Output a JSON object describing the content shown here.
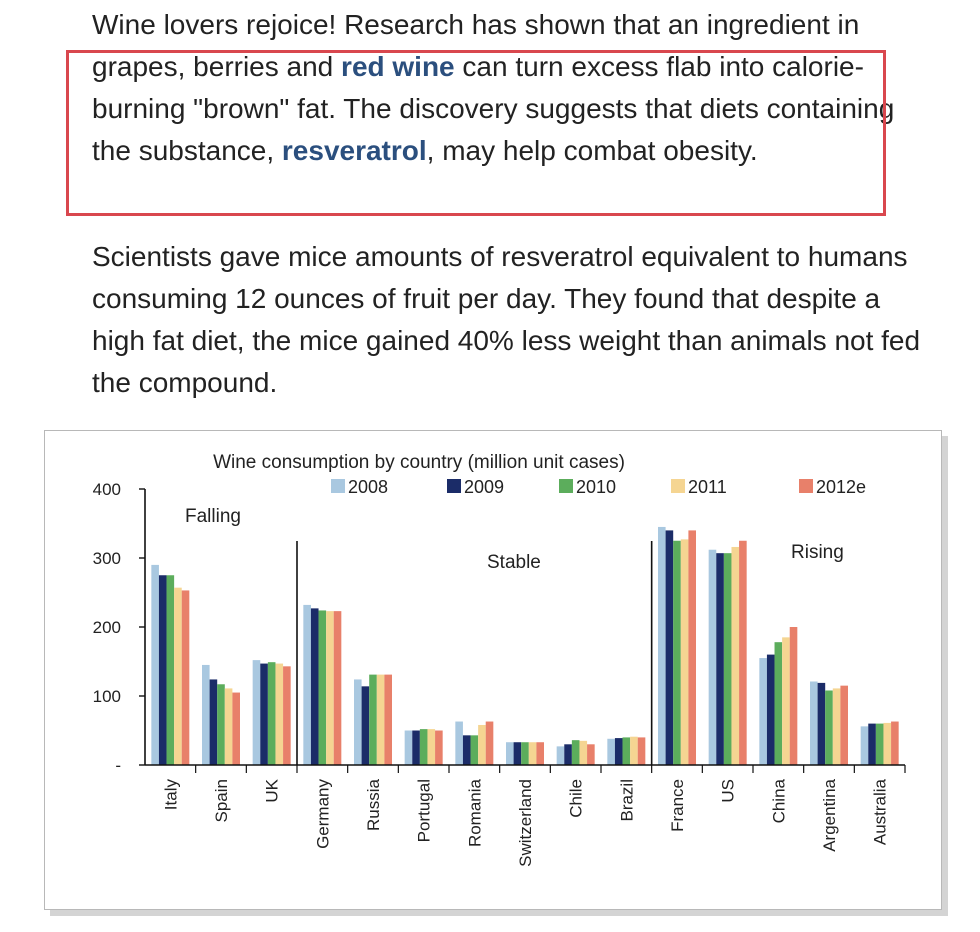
{
  "article": {
    "para1": {
      "t1": "Wine lovers rejoice! Research has shown that an ingredient in grapes, berries and ",
      "h1": "red wine",
      "t2": " can turn excess flab into calorie-burning \"brown\" fat. The discovery suggests that diets containing the substance, ",
      "h2": "resveratrol",
      "t3": ", may help combat obesity."
    },
    "para2": "Scientists gave mice amounts of resveratrol equivalent to humans consuming 12 ounces of fruit per day. They found that despite a high fat diet, the mice gained 40% less weight than animals not fed the compound.",
    "highlight_color": "#2b4f7e",
    "box_color": "#d9474e"
  },
  "chart_data": {
    "type": "bar",
    "title": "Wine consumption by country (million unit cases)",
    "categories": [
      "Italy",
      "Spain",
      "UK",
      "Germany",
      "Russia",
      "Portugal",
      "Romania",
      "Switzerland",
      "Chile",
      "Brazil",
      "France",
      "US",
      "China",
      "Argentina",
      "Australia"
    ],
    "series": [
      {
        "name": "2008",
        "color": "#a9c8e0",
        "values": [
          290,
          145,
          152,
          232,
          124,
          50,
          63,
          33,
          27,
          38,
          345,
          312,
          155,
          121,
          56
        ]
      },
      {
        "name": "2009",
        "color": "#1b2c68",
        "values": [
          275,
          124,
          147,
          227,
          114,
          50,
          43,
          33,
          30,
          39,
          340,
          307,
          160,
          119,
          60
        ]
      },
      {
        "name": "2010",
        "color": "#5cad5c",
        "values": [
          275,
          117,
          149,
          224,
          131,
          52,
          43,
          33,
          36,
          40,
          325,
          307,
          178,
          108,
          60
        ]
      },
      {
        "name": "2011",
        "color": "#f5d592",
        "values": [
          257,
          111,
          147,
          223,
          131,
          52,
          58,
          33,
          35,
          41,
          327,
          316,
          185,
          111,
          61
        ]
      },
      {
        "name": "2012e",
        "color": "#e8806a",
        "values": [
          253,
          105,
          143,
          223,
          131,
          50,
          63,
          33,
          30,
          40,
          340,
          325,
          200,
          115,
          63
        ]
      }
    ],
    "y_ticks": [
      "400",
      "300",
      "200",
      "100",
      "-"
    ],
    "ylim": [
      0,
      400
    ],
    "annotations": [
      "Falling",
      "Stable",
      "Rising"
    ],
    "legend_position": "top"
  }
}
